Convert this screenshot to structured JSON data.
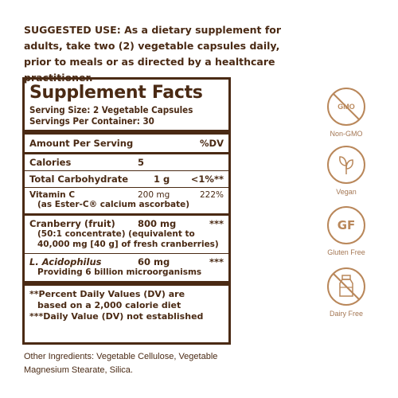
{
  "suggested_use": {
    "heading": "SUGGESTED USE:",
    "text": "As a dietary supplement for adults, take two (2) vegetable capsules daily, prior to meals or as directed by a healthcare practitioner."
  },
  "facts": {
    "title": "Supplement Facts",
    "serving_size": "Serving Size: 2 Vegetable Capsules",
    "servings_per_container": "Servings Per Container: 30",
    "amount_header": "Amount Per Serving",
    "dv_header": "%DV",
    "calories": {
      "name": "Calories",
      "amount": "5",
      "dv": ""
    },
    "carbs": {
      "name": "Total Carbohydrate",
      "amount": "1 g",
      "dv": "<1%**"
    },
    "vitamin_c": {
      "name": "Vitamin C",
      "amount": "200 mg",
      "dv": "222%",
      "sub": "(as Ester-C® calcium ascorbate)"
    },
    "cranberry": {
      "name": "Cranberry (fruit)",
      "amount": "800 mg",
      "dv": "***",
      "sub1": "(50:1 concentrate) (equivalent to",
      "sub2": "40,000 mg [40 g] of fresh cranberries)"
    },
    "acidophilus": {
      "name": "L. Acidophilus",
      "amount": "60 mg",
      "dv": "***",
      "sub": "Providing 6 billion microorganisms"
    },
    "footnote1a": "**Percent Daily Values (DV) are",
    "footnote1b": "based on a 2,000 calorie diet",
    "footnote2": "***Daily Value (DV) not established"
  },
  "other_ingredients": "Other Ingredients: Vegetable Cellulose, Vegetable Magnesium Stearate, Silica.",
  "badges": [
    {
      "icon": "gmo",
      "inner": "GMO",
      "label": "Non-GMO"
    },
    {
      "icon": "leaf",
      "label": "Vegan"
    },
    {
      "icon": "gf",
      "inner": "GF",
      "label": "Gluten Free"
    },
    {
      "icon": "milk",
      "label": "Dairy Free"
    }
  ],
  "colors": {
    "text": "#4a2a14",
    "badge": "#b9875a"
  }
}
